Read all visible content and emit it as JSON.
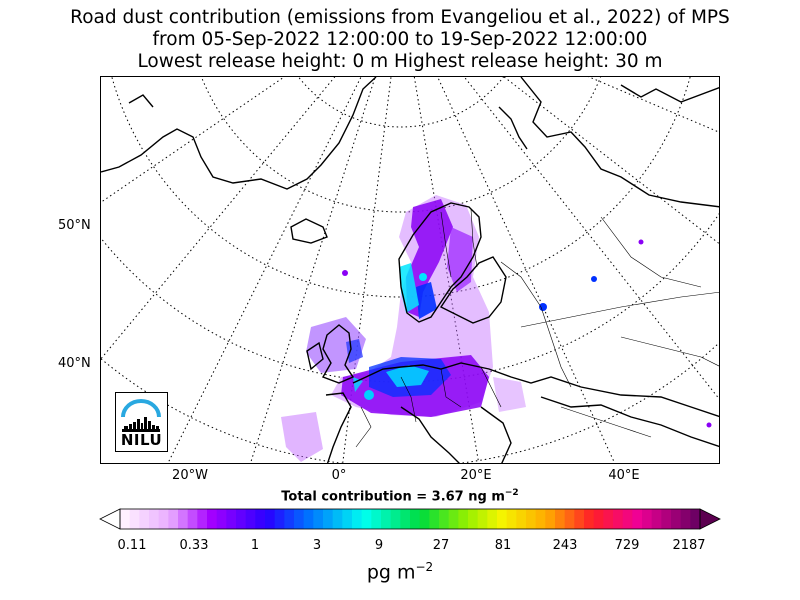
{
  "title": {
    "line1": "Road dust contribution (emissions from Evangeliou et al., 2022) of MPS",
    "line2": "from 05-Sep-2022 12:00:00 to 19-Sep-2022 12:00:00",
    "line3": "Lowest release height: 0 m      Highest release height: 30 m"
  },
  "map": {
    "lat_labels": [
      "50°N",
      "40°N"
    ],
    "lon_labels": [
      "20°W",
      "0°",
      "20°E",
      "40°E"
    ],
    "coastline_color": "#000000",
    "border_color": "#000000",
    "graticule_style": "dotted",
    "plume_colors": [
      "#8a00f5",
      "#0030ff",
      "#00e6ff",
      "#c36cff"
    ]
  },
  "total_contribution": {
    "label": "Total contribution = 3.67 ng m",
    "exponent": "−2"
  },
  "colorbar": {
    "tick_labels": [
      "0.11",
      "0.33",
      "1",
      "3",
      "9",
      "27",
      "81",
      "243",
      "729",
      "2187"
    ],
    "unit": "pg m",
    "unit_exponent": "−2",
    "extend": "both"
  },
  "logo": {
    "text": "NILU",
    "arc_color": "#29a8e0"
  }
}
